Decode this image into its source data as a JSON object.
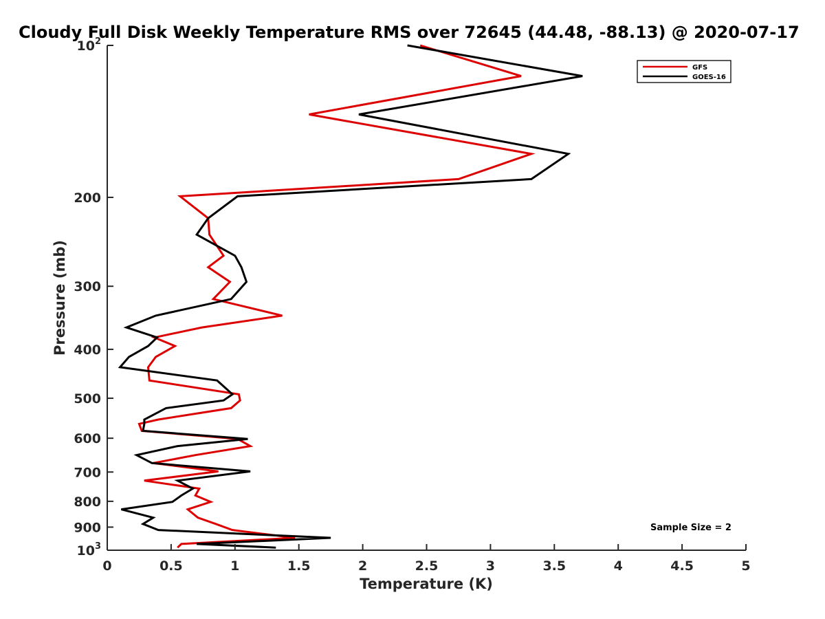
{
  "chart_data": {
    "type": "line",
    "title": "Cloudy Full Disk Weekly Temperature RMS over 72645 (44.48, -88.13) @ 2020-07-17",
    "xlabel": "Temperature (K)",
    "ylabel": "Pressure (mb)",
    "xlim": [
      0,
      5
    ],
    "ylim": [
      100,
      1000
    ],
    "y_scale": "log",
    "y_reversed": true,
    "grid": false,
    "legend_position": "top-right",
    "x_ticks": [
      "0",
      "0.5",
      "1",
      "1.5",
      "2",
      "2.5",
      "3",
      "3.5",
      "4",
      "4.5",
      "5"
    ],
    "y_ticks": [
      {
        "value": 100,
        "base": "10",
        "sup": "2"
      },
      {
        "value": 200,
        "label": "200"
      },
      {
        "value": 300,
        "label": "300"
      },
      {
        "value": 400,
        "label": "400"
      },
      {
        "value": 500,
        "label": "500"
      },
      {
        "value": 600,
        "label": "600"
      },
      {
        "value": 700,
        "label": "700"
      },
      {
        "value": 800,
        "label": "800"
      },
      {
        "value": 900,
        "label": "900"
      },
      {
        "value": 1000,
        "base": "10",
        "sup": "3"
      }
    ],
    "series": [
      {
        "name": "GFS",
        "color": "#dd0000",
        "points": [
          [
            2.45,
            100
          ],
          [
            3.24,
            115
          ],
          [
            1.58,
            137
          ],
          [
            3.32,
            164
          ],
          [
            2.75,
            184
          ],
          [
            0.57,
            199
          ],
          [
            0.79,
            220
          ],
          [
            0.8,
            237
          ],
          [
            0.91,
            261
          ],
          [
            0.79,
            275
          ],
          [
            0.96,
            294
          ],
          [
            0.83,
            318
          ],
          [
            1.37,
            343
          ],
          [
            0.74,
            362
          ],
          [
            0.37,
            379
          ],
          [
            0.53,
            394
          ],
          [
            0.38,
            414
          ],
          [
            0.32,
            434
          ],
          [
            0.33,
            461
          ],
          [
            1.03,
            491
          ],
          [
            1.04,
            505
          ],
          [
            0.97,
            523
          ],
          [
            0.4,
            551
          ],
          [
            0.25,
            562
          ],
          [
            0.27,
            580
          ],
          [
            1.02,
            602
          ],
          [
            1.12,
            622
          ],
          [
            0.69,
            648
          ],
          [
            0.36,
            672
          ],
          [
            0.87,
            698
          ],
          [
            0.29,
            728
          ],
          [
            0.72,
            755
          ],
          [
            0.69,
            779
          ],
          [
            0.81,
            802
          ],
          [
            0.63,
            830
          ],
          [
            0.71,
            862
          ],
          [
            0.85,
            887
          ],
          [
            0.98,
            912
          ],
          [
            1.47,
            945
          ],
          [
            0.58,
            972
          ],
          [
            0.55,
            988
          ]
        ]
      },
      {
        "name": "GOES-16",
        "color": "#000000",
        "points": [
          [
            2.35,
            100
          ],
          [
            3.72,
            115
          ],
          [
            1.97,
            137
          ],
          [
            3.61,
            164
          ],
          [
            3.32,
            184
          ],
          [
            1.02,
            199
          ],
          [
            0.79,
            220
          ],
          [
            0.7,
            237
          ],
          [
            1.0,
            261
          ],
          [
            1.05,
            275
          ],
          [
            1.09,
            294
          ],
          [
            0.97,
            318
          ],
          [
            0.38,
            343
          ],
          [
            0.15,
            362
          ],
          [
            0.39,
            379
          ],
          [
            0.32,
            394
          ],
          [
            0.17,
            414
          ],
          [
            0.1,
            434
          ],
          [
            0.86,
            461
          ],
          [
            0.98,
            491
          ],
          [
            0.91,
            505
          ],
          [
            0.46,
            523
          ],
          [
            0.29,
            551
          ],
          [
            0.29,
            562
          ],
          [
            0.28,
            580
          ],
          [
            1.1,
            602
          ],
          [
            0.55,
            622
          ],
          [
            0.23,
            648
          ],
          [
            0.35,
            672
          ],
          [
            1.12,
            698
          ],
          [
            0.55,
            728
          ],
          [
            0.67,
            755
          ],
          [
            0.58,
            779
          ],
          [
            0.51,
            802
          ],
          [
            0.11,
            830
          ],
          [
            0.36,
            862
          ],
          [
            0.28,
            887
          ],
          [
            0.4,
            912
          ],
          [
            1.75,
            945
          ],
          [
            0.7,
            972
          ],
          [
            1.32,
            988
          ]
        ]
      }
    ],
    "annotation": "Sample Size = 2"
  }
}
